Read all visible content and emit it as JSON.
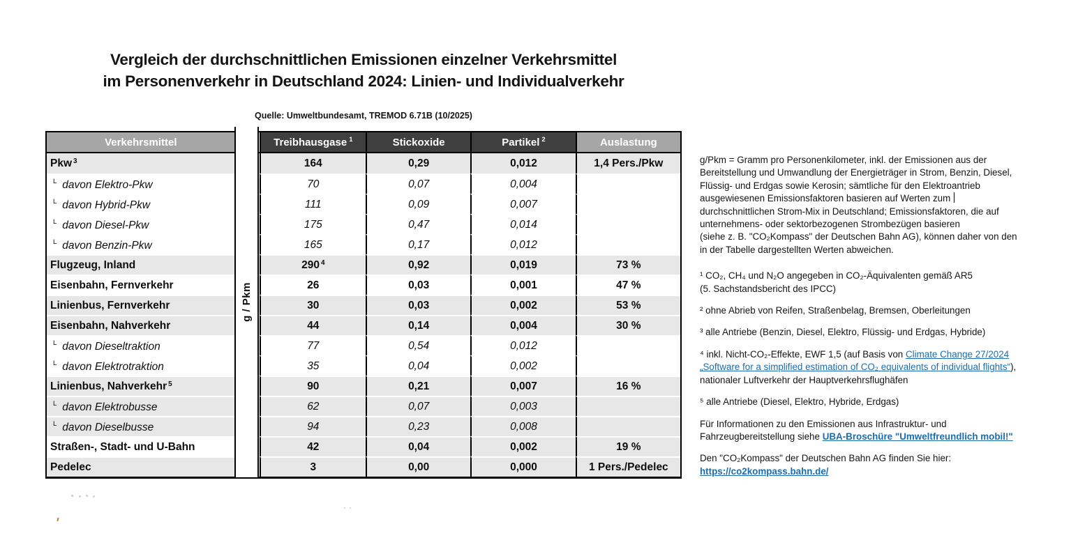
{
  "title": {
    "line1": "Vergleich der durchschnittlichen Emissionen einzelner Verkehrsmittel",
    "line2": "im Personenverkehr in Deutschland 2024: Linien- und Individualverkehr"
  },
  "source": "Quelle: Umweltbundesamt, TREMOD 6.71B (10/2025)",
  "table": {
    "unit_label": "g / Pkm",
    "sub_marker": "L",
    "headers": [
      {
        "label": "Verkehrsmittel",
        "sup": ""
      },
      {
        "label": "Treibhausgase",
        "sup": "1"
      },
      {
        "label": "Stickoxide",
        "sup": ""
      },
      {
        "label": "Partikel",
        "sup": "2"
      },
      {
        "label": "Auslastung",
        "sup": ""
      }
    ],
    "rows": [
      {
        "label": "Pkw",
        "sup": "3",
        "kind": "main",
        "shade": "g",
        "ghg": "164",
        "ghg_sup": "",
        "nox": "0,29",
        "pm": "0,012",
        "load": "1,4 Pers./Pkw"
      },
      {
        "label": "davon Elektro-Pkw",
        "sup": "",
        "kind": "sub",
        "shade": "w",
        "ghg": "70",
        "ghg_sup": "",
        "nox": "0,07",
        "pm": "0,004",
        "load": ""
      },
      {
        "label": "davon Hybrid-Pkw",
        "sup": "",
        "kind": "sub",
        "shade": "w",
        "ghg": "111",
        "ghg_sup": "",
        "nox": "0,09",
        "pm": "0,007",
        "load": ""
      },
      {
        "label": "davon Diesel-Pkw",
        "sup": "",
        "kind": "sub",
        "shade": "w",
        "ghg": "175",
        "ghg_sup": "",
        "nox": "0,47",
        "pm": "0,014",
        "load": ""
      },
      {
        "label": "davon Benzin-Pkw",
        "sup": "",
        "kind": "sub",
        "shade": "w",
        "ghg": "165",
        "ghg_sup": "",
        "nox": "0,17",
        "pm": "0,012",
        "load": ""
      },
      {
        "label": "Flugzeug, Inland",
        "sup": "",
        "kind": "main",
        "shade": "g",
        "ghg": "290",
        "ghg_sup": "4",
        "nox": "0,92",
        "pm": "0,019",
        "load": "73 %"
      },
      {
        "label": "Eisenbahn, Fernverkehr",
        "sup": "",
        "kind": "main",
        "shade": "w",
        "ghg": "26",
        "ghg_sup": "",
        "nox": "0,03",
        "pm": "0,001",
        "load": "47 %"
      },
      {
        "label": "Linienbus, Fernverkehr",
        "sup": "",
        "kind": "main",
        "shade": "g",
        "ghg": "30",
        "ghg_sup": "",
        "nox": "0,03",
        "pm": "0,002",
        "load": "53 %"
      },
      {
        "label": "Eisenbahn, Nahverkehr",
        "sup": "",
        "kind": "main",
        "shade": "g",
        "ghg": "44",
        "ghg_sup": "",
        "nox": "0,14",
        "pm": "0,004",
        "load": "30 %"
      },
      {
        "label": "davon Dieseltraktion",
        "sup": "",
        "kind": "sub",
        "shade": "w",
        "ghg": "77",
        "ghg_sup": "",
        "nox": "0,54",
        "pm": "0,012",
        "load": ""
      },
      {
        "label": "davon Elektrotraktion",
        "sup": "",
        "kind": "sub",
        "shade": "w",
        "ghg": "35",
        "ghg_sup": "",
        "nox": "0,04",
        "pm": "0,002",
        "load": ""
      },
      {
        "label": "Linienbus, Nahverkehr",
        "sup": "5",
        "kind": "main",
        "shade": "g",
        "ghg": "90",
        "ghg_sup": "",
        "nox": "0,21",
        "pm": "0,007",
        "load": "16 %"
      },
      {
        "label": "davon Elektrobusse",
        "sup": "",
        "kind": "sub",
        "shade": "g",
        "ghg": "62",
        "ghg_sup": "",
        "nox": "0,07",
        "pm": "0,003",
        "load": ""
      },
      {
        "label": "davon Dieselbusse",
        "sup": "",
        "kind": "sub",
        "shade": "g",
        "ghg": "94",
        "ghg_sup": "",
        "nox": "0,23",
        "pm": "0,008",
        "load": ""
      },
      {
        "label": "Straßen-, Stadt- und U-Bahn",
        "sup": "",
        "kind": "main",
        "shade": "g",
        "label_shade": "w",
        "ghg": "42",
        "ghg_sup": "",
        "nox": "0,04",
        "pm": "0,002",
        "load": "19 %"
      },
      {
        "label": "Pedelec",
        "sup": "",
        "kind": "main",
        "shade": "g",
        "ghg": "3",
        "ghg_sup": "",
        "nox": "0,00",
        "pm": "0,000",
        "load": "1 Pers./Pedelec"
      }
    ]
  },
  "notes": {
    "paragraphs": [
      {
        "segments": [
          {
            "text": "g/Pkm = Gramm pro Personenkilometer, inkl. der Emissionen aus der\nBereitstellung und Umwandlung der Energieträger in Strom, Benzin, Diesel,\nFlüssig- und Erdgas sowie Kerosin; sämtliche für den Elektroantrieb\nausgewiesenen Emissionsfaktoren basieren auf Werten zum "
          },
          {
            "caret": true
          },
          {
            "text": "\ndurchschnittlichen Strom-Mix in Deutschland; Emissionsfaktoren, die auf\nunternehmens- oder sektorbezogenen Strombezügen basieren\n(siehe z. B. \"CO₂Kompass\" der Deutschen Bahn AG), können daher von den\nin der Tabelle dargestellten Werten abweichen."
          }
        ]
      },
      {
        "segments": [
          {
            "text": "¹ CO₂, CH₄ und N₂O angegeben in CO₂-Äquivalenten gemäß AR5\n(5. Sachstandsbericht des IPCC)"
          }
        ]
      },
      {
        "segments": [
          {
            "text": "² ohne Abrieb von Reifen, Straßenbelag, Bremsen, Oberleitungen"
          }
        ]
      },
      {
        "segments": [
          {
            "text": "³ alle Antriebe (Benzin, Diesel, Elektro, Flüssig- und Erdgas, Hybride)"
          }
        ]
      },
      {
        "segments": [
          {
            "text": "⁴ inkl. Nicht-CO₂-Effekte, EWF 1,5 (auf Basis von "
          },
          {
            "text": "Climate Change 27/2024\n„Software for a simplified estimation of CO₂ equivalents of individual flights“",
            "link": true
          },
          {
            "text": "),\nnationaler Luftverkehr der Hauptverkehrsflughäfen"
          }
        ]
      },
      {
        "segments": [
          {
            "text": "⁵ alle Antriebe (Diesel, Elektro, Hybride, Erdgas)"
          }
        ]
      },
      {
        "segments": [
          {
            "text": "Für Informationen zu den Emissionen aus Infrastruktur- und\nFahrzeugbereitstellung siehe "
          },
          {
            "text": "UBA-Broschüre \"Umweltfreundlich mobil!\"",
            "link": true,
            "bold": true
          }
        ]
      },
      {
        "segments": [
          {
            "text": "Den \"CO₂Kompass\" der Deutschen Bahn AG finden Sie hier:\n"
          },
          {
            "text": "https://co2kompass.bahn.de/",
            "link": true,
            "bold": true
          }
        ]
      }
    ]
  },
  "colors": {
    "link_blue": "#1b6db0",
    "row_gray": "#e7e7e7",
    "header_gray": "#a6a6a6",
    "header_dark": "#3f3f3f",
    "border_black": "#000000"
  }
}
